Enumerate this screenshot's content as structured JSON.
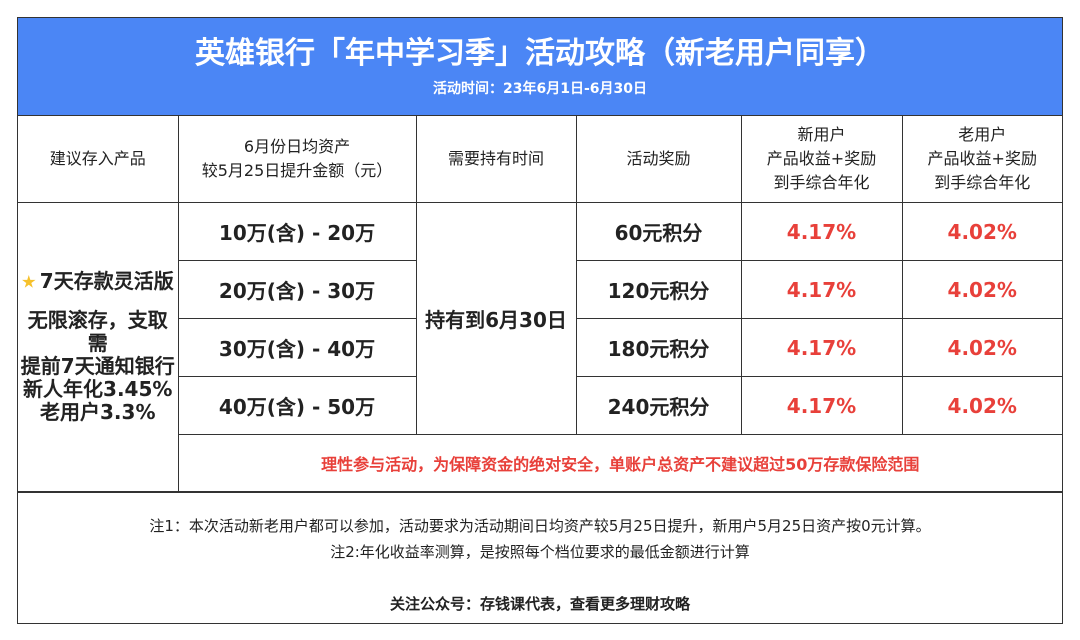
{
  "header": {
    "title": "英雄银行「年中学习季」活动攻略（新老用户同享）",
    "subtitle": "活动时间：23年6月1日-6月30日"
  },
  "table": {
    "columns": [
      [
        "建议存入产品"
      ],
      [
        "6月份日均资产",
        "较5月25日提升金额（元）"
      ],
      [
        "需要持有时间"
      ],
      [
        "活动奖励"
      ],
      [
        "新用户",
        "产品收益+奖励",
        "到手综合年化"
      ],
      [
        "老用户",
        "产品收益+奖励",
        "到手综合年化"
      ]
    ],
    "product": [
      "7天存款灵活版",
      "无限滚存，支取需",
      "提前7天通知银行",
      "新人年化3.45%",
      "老用户3.3%"
    ],
    "hold": "持有到6月30日",
    "rows": [
      [
        "10万(含) - 20万",
        "60元积分",
        "4.17%",
        "4.02%"
      ],
      [
        "20万(含) - 30万",
        "120元积分",
        "4.17%",
        "4.02%"
      ],
      [
        "30万(含) - 40万",
        "180元积分",
        "4.17%",
        "4.02%"
      ],
      [
        "40万(含) - 50万",
        "240元积分",
        "4.17%",
        "4.02%"
      ]
    ],
    "warning": "理性参与活动，为保障资金的绝对安全，单账户总资产不建议超过50万存款保险范围"
  },
  "notes": [
    "注1：本次活动新老用户都可以参加，活动要求为活动期间日均资产较5月25日提升，新用户5月25日资产按0元计算。",
    "注2:年化收益率测算，是按照每个档位要求的最低金额进行计算",
    "关注公众号：存钱课代表，查看更多理财攻略"
  ]
}
